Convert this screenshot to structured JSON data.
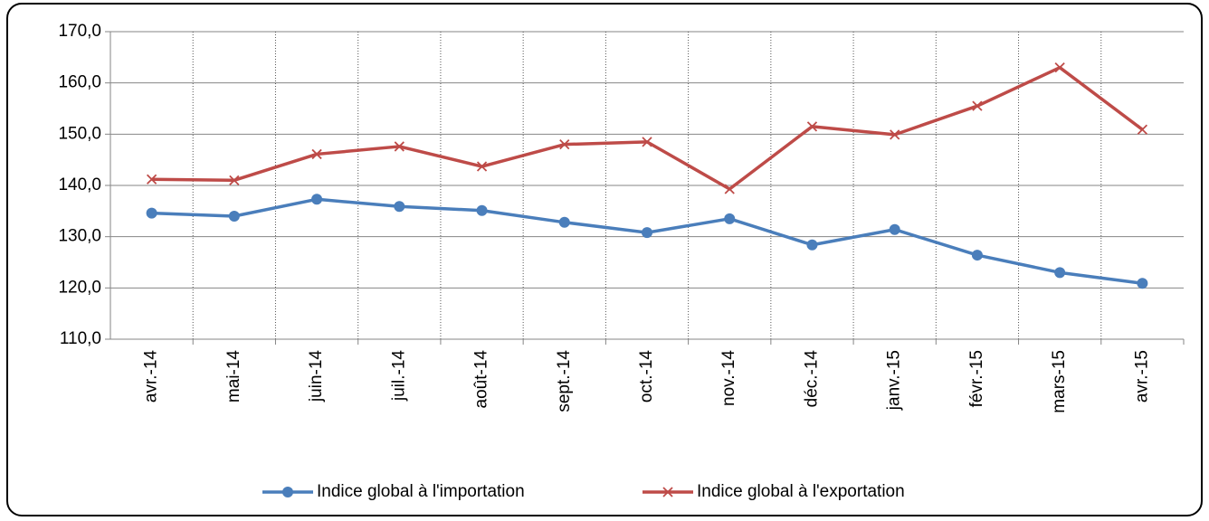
{
  "chart_data": {
    "type": "line",
    "categories": [
      "avr.-14",
      "mai-14",
      "juin-14",
      "juil.-14",
      "août-14",
      "sept.-14",
      "oct.-14",
      "nov.-14",
      "déc.-14",
      "janv.-15",
      "févr.-15",
      "mars-15",
      "avr.-15"
    ],
    "series": [
      {
        "name": "Indice global à l'importation",
        "color": "#4a7ebb",
        "marker": "circle",
        "values": [
          134.6,
          134.0,
          137.3,
          135.9,
          135.1,
          132.8,
          130.8,
          133.5,
          128.4,
          131.4,
          126.4,
          123.0,
          120.9
        ]
      },
      {
        "name": "Indice global à l'exportation",
        "color": "#be4b48",
        "marker": "x",
        "values": [
          141.2,
          141.0,
          146.1,
          147.6,
          143.7,
          148.0,
          148.5,
          139.3,
          151.5,
          149.9,
          155.5,
          163.0,
          150.9
        ]
      }
    ],
    "ylim": [
      110,
      170
    ],
    "yticks": [
      {
        "value": 110,
        "label": "110,0"
      },
      {
        "value": 120,
        "label": "120,0"
      },
      {
        "value": 130,
        "label": "130,0"
      },
      {
        "value": 140,
        "label": "140,0"
      },
      {
        "value": 150,
        "label": "150,0"
      },
      {
        "value": 160,
        "label": "160,0"
      },
      {
        "value": 170,
        "label": "170,0"
      }
    ],
    "grid": true,
    "legend": "bottom"
  }
}
